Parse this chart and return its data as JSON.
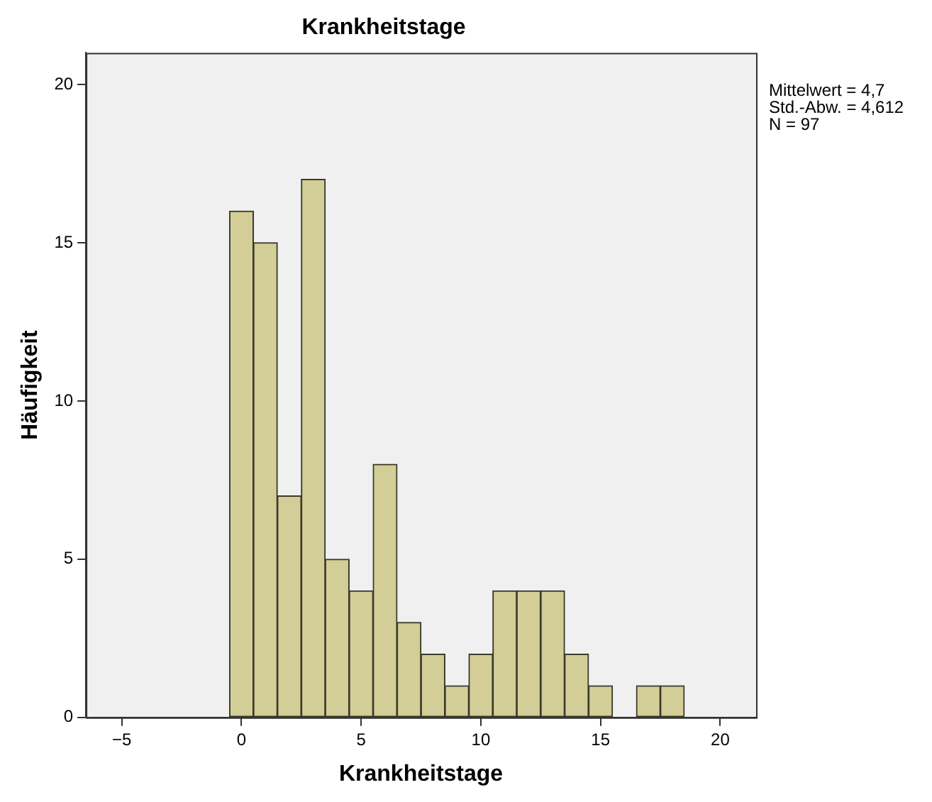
{
  "chart_data": {
    "type": "histogram",
    "title": "Krankheitstage",
    "xlabel": "Krankheitstage",
    "ylabel": "Häufigkeit",
    "bins": [
      -0.5,
      0.5,
      1.5,
      2.5,
      3.5,
      4.5,
      5.5,
      6.5,
      7.5,
      8.5,
      9.5,
      10.5,
      11.5,
      12.5,
      13.5,
      14.5,
      15.5,
      16.5,
      17.5,
      18.5
    ],
    "values": [
      16,
      15,
      7,
      17,
      5,
      4,
      8,
      3,
      2,
      1,
      2,
      4,
      4,
      4,
      2,
      1,
      0,
      1,
      1
    ],
    "color": "#d3ce97",
    "xlim": [
      -6.5,
      21.5
    ],
    "xticks": [
      -5,
      0,
      5,
      10,
      15,
      20
    ],
    "ylim": [
      0,
      21
    ],
    "yticks": [
      0,
      5,
      10,
      15,
      20
    ],
    "grid": false,
    "legend": false,
    "annotations": [
      "Mittelwert = 4,7",
      "Std.-Abw. = 4,612",
      "N = 97"
    ]
  }
}
